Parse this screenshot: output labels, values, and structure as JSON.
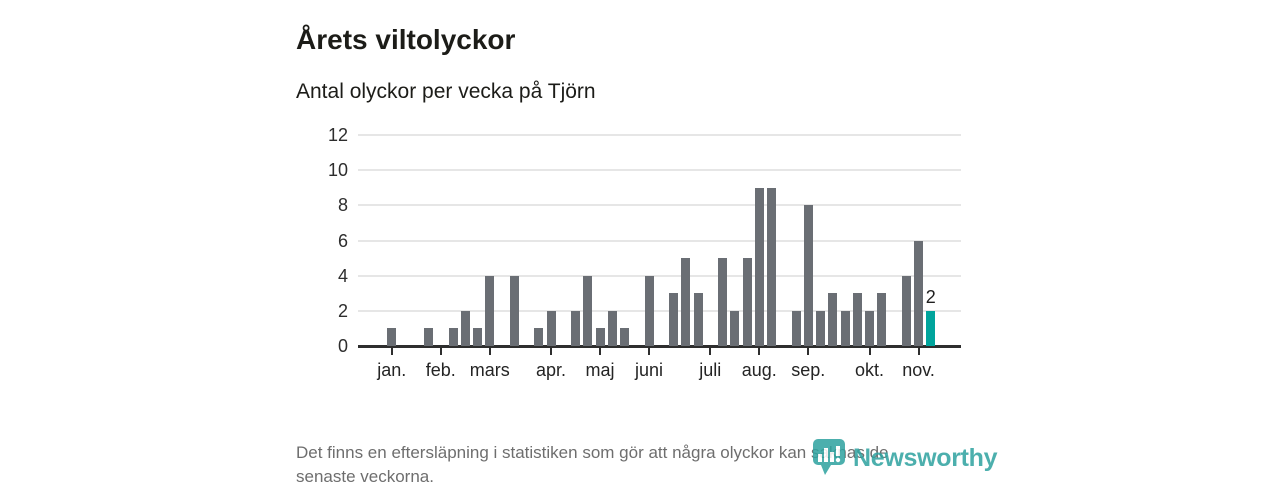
{
  "header": {
    "title": "Årets viltolyckor",
    "subtitle": "Antal olyckor per vecka på Tjörn"
  },
  "chart_data": {
    "type": "bar",
    "title": "Årets viltolyckor",
    "subtitle": "Antal olyckor per vecka på Tjörn",
    "x_unit": "vecka",
    "weeks": 45,
    "values": [
      1,
      0,
      0,
      1,
      0,
      1,
      2,
      1,
      4,
      0,
      4,
      0,
      1,
      2,
      0,
      2,
      4,
      1,
      2,
      1,
      0,
      4,
      0,
      3,
      5,
      3,
      0,
      5,
      2,
      5,
      9,
      9,
      0,
      2,
      8,
      2,
      3,
      2,
      3,
      2,
      3,
      0,
      4,
      6,
      2
    ],
    "y_ticks": [
      0,
      2,
      4,
      6,
      8,
      10,
      12
    ],
    "ylim": [
      0,
      12
    ],
    "grid": true,
    "legend": false,
    "month_ticks": [
      {
        "label": "jan.",
        "week": 1
      },
      {
        "label": "feb.",
        "week": 5
      },
      {
        "label": "mars",
        "week": 9
      },
      {
        "label": "apr.",
        "week": 14
      },
      {
        "label": "maj",
        "week": 18
      },
      {
        "label": "juni",
        "week": 22
      },
      {
        "label": "juli",
        "week": 27
      },
      {
        "label": "aug.",
        "week": 31
      },
      {
        "label": "sep.",
        "week": 35
      },
      {
        "label": "okt.",
        "week": 40
      },
      {
        "label": "nov.",
        "week": 44
      }
    ],
    "bar_color": "#6a6e74",
    "highlight_color": "#00a49c",
    "highlight_index": 44,
    "last_value_label": "2"
  },
  "footer": {
    "lines": [
      "Det finns en eftersläpning i statistiken som gör att några olyckor kan saknas de",
      "senaste veckorna."
    ]
  },
  "logo": {
    "text": "Newsworthy",
    "icon": "newsworthy-badge-icon",
    "color": "#2fa3a0"
  }
}
